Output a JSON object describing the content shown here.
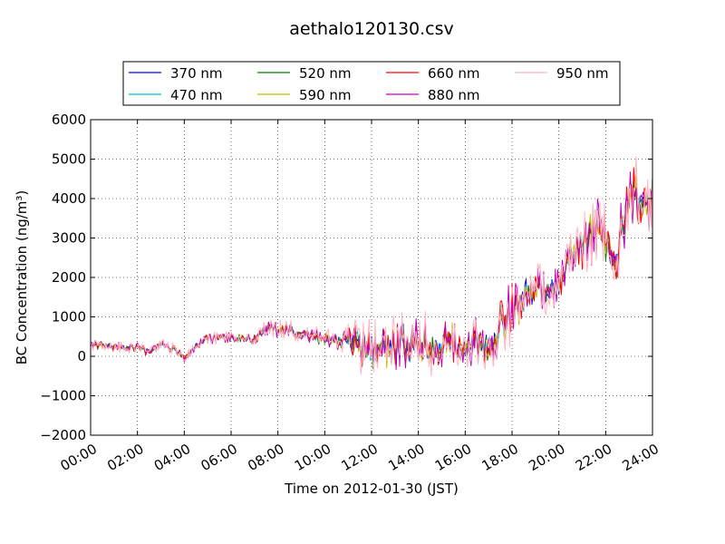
{
  "chart_data": {
    "type": "line",
    "title": "aethalo120130.csv",
    "xlabel": "Time on 2012-01-30 (JST)",
    "ylabel": "BC Concentration (ng/m³)",
    "ylim": [
      -2000,
      6000
    ],
    "yticks": [
      -2000,
      -1000,
      0,
      1000,
      2000,
      3000,
      4000,
      5000,
      6000
    ],
    "yticklabels": [
      "−2000",
      "−1000",
      "0",
      "1000",
      "2000",
      "3000",
      "4000",
      "5000",
      "6000"
    ],
    "xlim_hours": [
      0,
      24
    ],
    "xticks_hours": [
      0,
      2,
      4,
      6,
      8,
      10,
      12,
      14,
      16,
      18,
      20,
      22,
      24
    ],
    "xticklabels": [
      "00:00",
      "02:00",
      "04:00",
      "06:00",
      "08:00",
      "10:00",
      "12:00",
      "14:00",
      "16:00",
      "18:00",
      "20:00",
      "22:00",
      "24:00"
    ],
    "grid": true,
    "legend_position": "top-center",
    "key_points_hours": [
      0,
      1,
      2,
      2.5,
      3,
      3.5,
      4,
      5,
      6,
      7,
      7.5,
      8,
      9,
      9.5,
      10,
      11,
      12,
      13,
      14,
      15,
      16,
      16.5,
      17,
      17.5,
      18,
      18.5,
      19,
      19.5,
      20,
      20.5,
      21,
      21.5,
      22,
      22.5,
      23,
      23.5,
      24
    ],
    "baseline": [
      280,
      250,
      220,
      100,
      300,
      200,
      0,
      450,
      480,
      420,
      700,
      700,
      600,
      500,
      400,
      350,
      150,
      300,
      280,
      300,
      320,
      300,
      200,
      700,
      1200,
      1500,
      1700,
      1700,
      1800,
      2500,
      2800,
      3200,
      3000,
      2500,
      4200,
      3800,
      4000
    ],
    "series": [
      {
        "name": "370 nm",
        "color": "#0000ff",
        "amp_scale": 1.0
      },
      {
        "name": "470 nm",
        "color": "#00bfbf",
        "amp_scale": 0.9
      },
      {
        "name": "520 nm",
        "color": "#008000",
        "amp_scale": 1.0
      },
      {
        "name": "590 nm",
        "color": "#bfbf00",
        "amp_scale": 1.05
      },
      {
        "name": "660 nm",
        "color": "#ff0000",
        "amp_scale": 1.1
      },
      {
        "name": "880 nm",
        "color": "#bf00bf",
        "amp_scale": 1.3
      },
      {
        "name": "950 nm",
        "color": "#ffb6c1",
        "amp_scale": 1.6
      }
    ]
  }
}
